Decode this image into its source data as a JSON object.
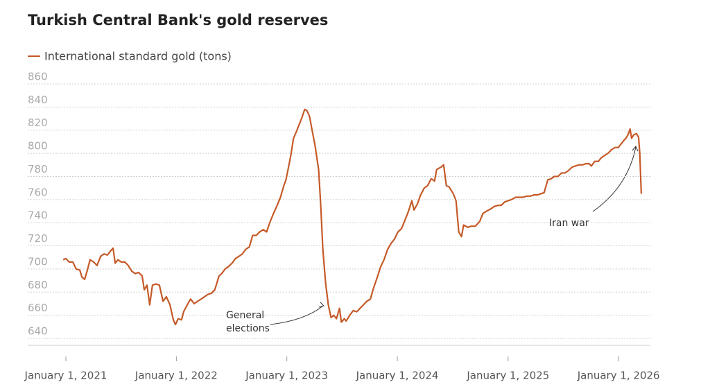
{
  "chart_data": {
    "type": "line",
    "title": "Turkish Central Bank's gold reserves",
    "annotations": [
      "General elections",
      "Iran war"
    ],
    "xlim": [
      "2020-08-28",
      "2026-04-16"
    ],
    "xticks": [
      {
        "value": "2021-01-01",
        "label": "January 1, 2021"
      },
      {
        "value": "2022-01-01",
        "label": "January 1, 2022"
      },
      {
        "value": "2023-01-01",
        "label": "January 1, 2023"
      },
      {
        "value": "2024-01-01",
        "label": "January 1, 2024"
      },
      {
        "value": "2025-01-01",
        "label": "January 1, 2025"
      },
      {
        "value": "2026-01-01",
        "label": "January 1, 2026"
      }
    ],
    "ylim": [
      634,
      860
    ],
    "yticks": [
      640,
      660,
      680,
      700,
      720,
      740,
      760,
      780,
      800,
      820,
      840,
      860
    ],
    "grid": true,
    "legend": "top-left",
    "x": [
      "2020-12-23",
      "2021-01-01",
      "2021-01-12",
      "2021-01-24",
      "2021-02-04",
      "2021-02-16",
      "2021-02-23",
      "2021-03-04",
      "2021-03-13",
      "2021-03-22",
      "2021-04-03",
      "2021-04-14",
      "2021-04-26",
      "2021-05-07",
      "2021-05-18",
      "2021-05-30",
      "2021-06-06",
      "2021-06-13",
      "2021-06-22",
      "2021-07-03",
      "2021-07-15",
      "2021-07-26",
      "2021-08-07",
      "2021-08-18",
      "2021-08-29",
      "2021-09-10",
      "2021-09-17",
      "2021-09-26",
      "2021-10-05",
      "2021-10-14",
      "2021-10-26",
      "2021-11-06",
      "2021-11-18",
      "2021-11-29",
      "2021-12-11",
      "2021-12-22",
      "2021-12-29",
      "2022-01-07",
      "2022-01-18",
      "2022-01-25",
      "2022-02-06",
      "2022-02-17",
      "2022-03-01",
      "2022-03-12",
      "2022-03-24",
      "2022-04-04",
      "2022-04-15",
      "2022-04-27",
      "2022-05-08",
      "2022-05-22",
      "2022-05-31",
      "2022-06-11",
      "2022-06-22",
      "2022-07-04",
      "2022-07-15",
      "2022-07-27",
      "2022-08-07",
      "2022-08-18",
      "2022-08-30",
      "2022-09-10",
      "2022-09-22",
      "2022-10-03",
      "2022-10-15",
      "2022-10-26",
      "2022-11-07",
      "2022-11-18",
      "2022-11-30",
      "2022-12-11",
      "2022-12-22",
      "2022-12-29",
      "2023-01-05",
      "2023-01-14",
      "2023-01-23",
      "2023-02-02",
      "2023-02-11",
      "2023-02-20",
      "2023-03-01",
      "2023-03-08",
      "2023-03-17",
      "2023-03-24",
      "2023-04-04",
      "2023-04-16",
      "2023-04-23",
      "2023-04-30",
      "2023-05-09",
      "2023-05-18",
      "2023-05-27",
      "2023-06-05",
      "2023-06-14",
      "2023-06-24",
      "2023-06-30",
      "2023-07-10",
      "2023-07-16",
      "2023-07-28",
      "2023-08-08",
      "2023-08-20",
      "2023-08-31",
      "2023-09-11",
      "2023-09-22",
      "2023-10-04",
      "2023-10-15",
      "2023-10-27",
      "2023-11-07",
      "2023-11-18",
      "2023-11-30",
      "2023-12-11",
      "2023-12-23",
      "2024-01-03",
      "2024-01-15",
      "2024-01-26",
      "2024-02-07",
      "2024-02-18",
      "2024-02-25",
      "2024-03-07",
      "2024-03-18",
      "2024-03-30",
      "2024-04-10",
      "2024-04-22",
      "2024-05-03",
      "2024-05-10",
      "2024-05-24",
      "2024-06-02",
      "2024-06-11",
      "2024-06-20",
      "2024-07-04",
      "2024-07-13",
      "2024-07-22",
      "2024-07-31",
      "2024-08-07",
      "2024-08-21",
      "2024-09-01",
      "2024-09-15",
      "2024-09-29",
      "2024-10-10",
      "2024-10-22",
      "2024-11-05",
      "2024-11-16",
      "2024-11-28",
      "2024-12-09",
      "2024-12-21",
      "2025-01-01",
      "2025-01-12",
      "2025-01-26",
      "2025-02-09",
      "2025-02-20",
      "2025-03-04",
      "2025-03-15",
      "2025-03-27",
      "2025-04-07",
      "2025-04-19",
      "2025-04-30",
      "2025-05-12",
      "2025-05-23",
      "2025-06-03",
      "2025-06-15",
      "2025-06-26",
      "2025-07-08",
      "2025-07-19",
      "2025-07-31",
      "2025-08-11",
      "2025-08-23",
      "2025-09-03",
      "2025-09-15",
      "2025-09-26",
      "2025-10-03",
      "2025-10-14",
      "2025-10-26",
      "2025-11-04",
      "2025-11-15",
      "2025-11-27",
      "2025-12-08",
      "2025-12-20",
      "2025-12-31",
      "2026-01-12",
      "2026-01-18",
      "2026-01-25",
      "2026-02-01",
      "2026-02-08",
      "2026-02-13",
      "2026-02-20",
      "2026-03-01",
      "2026-03-08",
      "2026-03-12",
      "2026-03-17"
    ],
    "series": [
      {
        "name": "International standard gold (tons)",
        "color": "#c55a28",
        "values": [
          708,
          709,
          706,
          706,
          700,
          699,
          693,
          691,
          699,
          708,
          706,
          703,
          711,
          713,
          712,
          716,
          718,
          705,
          708,
          706,
          706,
          703,
          698,
          696,
          697,
          694,
          682,
          686,
          669,
          686,
          687,
          686,
          672,
          676,
          669,
          656,
          652,
          657,
          656,
          663,
          669,
          674,
          670,
          672,
          674,
          676,
          678,
          679,
          682,
          694,
          696,
          700,
          702,
          705,
          709,
          711,
          713,
          717,
          719,
          729,
          729,
          732,
          734,
          732,
          741,
          748,
          755,
          762,
          772,
          777,
          786,
          798,
          813,
          819,
          825,
          831,
          838,
          837,
          832,
          822,
          807,
          786,
          755,
          717,
          688,
          669,
          658,
          660,
          657,
          666,
          654,
          657,
          655,
          660,
          664,
          663,
          666,
          669,
          672,
          674,
          684,
          693,
          702,
          708,
          717,
          722,
          726,
          732,
          735,
          742,
          750,
          759,
          751,
          756,
          764,
          770,
          772,
          778,
          776,
          786,
          788,
          790,
          772,
          771,
          765,
          759,
          732,
          728,
          738,
          736,
          737,
          737,
          741,
          748,
          750,
          752,
          754,
          755,
          755,
          758,
          759,
          760,
          762,
          762,
          762,
          763,
          763,
          764,
          764,
          765,
          766,
          777,
          778,
          780,
          780,
          783,
          783,
          785,
          788,
          789,
          790,
          790,
          791,
          791,
          789,
          793,
          793,
          796,
          798,
          800,
          803,
          805,
          805,
          809,
          811,
          813,
          816,
          821,
          813,
          816,
          817,
          814,
          800,
          765
        ]
      }
    ]
  }
}
